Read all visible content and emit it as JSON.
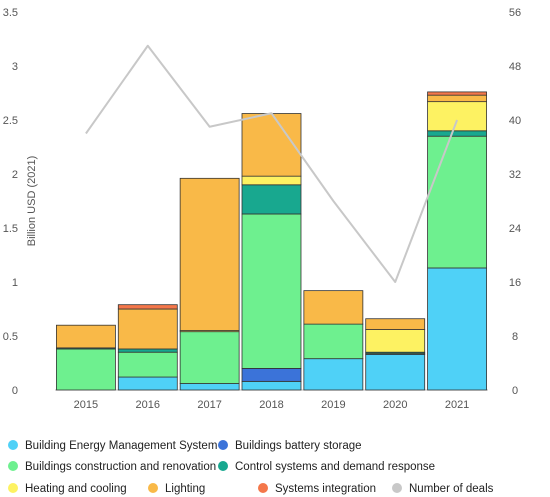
{
  "chart_data": {
    "type": "bar",
    "stacked": true,
    "categories": [
      "2015",
      "2016",
      "2017",
      "2018",
      "2019",
      "2020",
      "2021"
    ],
    "ylabel": "Billion USD (2021)",
    "ylim": [
      0,
      3.5
    ],
    "yticks": [
      "0",
      "0.5",
      "1",
      "1.5",
      "2",
      "2.5",
      "3",
      "3.5"
    ],
    "y2lim": [
      0,
      56
    ],
    "y2ticks": [
      "0",
      "8",
      "16",
      "24",
      "32",
      "40",
      "48",
      "56"
    ],
    "series": [
      {
        "name": "Building Energy Management System",
        "color": "#4fd1f7",
        "values": [
          0.0,
          0.12,
          0.06,
          0.08,
          0.29,
          0.33,
          1.13
        ]
      },
      {
        "name": "Buildings battery storage",
        "color": "#3b73d9",
        "values": [
          0.0,
          0.0,
          0.0,
          0.12,
          0.0,
          0.0,
          0.0
        ]
      },
      {
        "name": "Buildings construction and renovation",
        "color": "#6ef08f",
        "values": [
          0.38,
          0.23,
          0.48,
          1.43,
          0.32,
          0.01,
          1.22
        ]
      },
      {
        "name": "Control systems and demand response",
        "color": "#18a88f",
        "values": [
          0.01,
          0.03,
          0.0,
          0.27,
          0.0,
          0.01,
          0.05
        ]
      },
      {
        "name": "Heating and cooling",
        "color": "#fdf262",
        "values": [
          0.0,
          0.0,
          0.01,
          0.08,
          0.0,
          0.21,
          0.27
        ]
      },
      {
        "name": "Lighting",
        "color": "#f9b948",
        "values": [
          0.21,
          0.37,
          1.41,
          0.58,
          0.31,
          0.1,
          0.06
        ]
      },
      {
        "name": "Systems integration",
        "color": "#f4774a",
        "values": [
          0.0,
          0.04,
          0.0,
          0.0,
          0.0,
          0.0,
          0.03
        ]
      }
    ],
    "line_series": {
      "name": "Number of deals",
      "color": "#c8c8c8",
      "axis": "right",
      "values": [
        38,
        51,
        39,
        41,
        28,
        16,
        40
      ]
    },
    "legend_position": "bottom",
    "grid": false
  }
}
